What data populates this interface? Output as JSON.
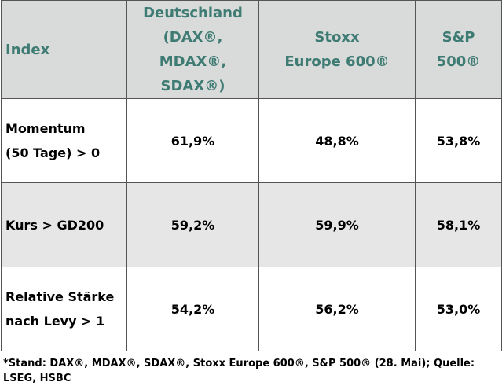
{
  "table": {
    "header": [
      [
        "Index"
      ],
      [
        "Deutschland",
        "(DAX®, MDAX®,",
        "SDAX®)"
      ],
      [
        "Stoxx",
        "Europe 600®"
      ],
      [
        "S&P 500®"
      ]
    ],
    "rows": [
      [
        [
          "Momentum",
          "(50 Tage) > 0"
        ],
        "61,9%",
        "48,8%",
        "53,8%"
      ],
      [
        [
          "Kurs > GD200"
        ],
        "59,2%",
        "59,9%",
        "58,1%"
      ],
      [
        [
          "Relative Stärke",
          "nach Levy > 1"
        ],
        "54,2%",
        "56,2%",
        "53,0%"
      ]
    ]
  },
  "footnote": "*Stand: DAX®, MDAX®, SDAX®, Stoxx Europe 600®, S&P 500® (28. Mai); Quelle: LSEG, HSBC"
}
